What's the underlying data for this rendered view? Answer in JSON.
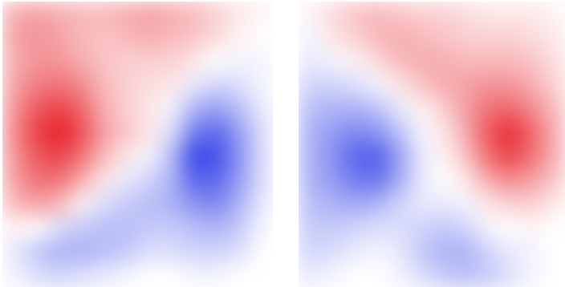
{
  "chart_data": [
    {
      "type": "heatmap",
      "tick_labels": false,
      "zlim": [
        -1,
        1
      ],
      "cells": [
        [
          0.35,
          0.4,
          0.35,
          0.3,
          0.3,
          0.35,
          0.4,
          0.35,
          0.3,
          0.2,
          0.1,
          0.05
        ],
        [
          0.4,
          0.45,
          0.4,
          0.3,
          0.25,
          0.3,
          0.35,
          0.3,
          0.25,
          0.15,
          0.05,
          0.0
        ],
        [
          0.35,
          0.45,
          0.45,
          0.35,
          0.25,
          0.2,
          0.2,
          0.2,
          0.1,
          0.0,
          -0.05,
          -0.05
        ],
        [
          0.4,
          0.55,
          0.6,
          0.5,
          0.3,
          0.2,
          0.15,
          0.1,
          -0.1,
          -0.2,
          -0.15,
          -0.05
        ],
        [
          0.45,
          0.7,
          0.8,
          0.65,
          0.35,
          0.2,
          0.1,
          -0.05,
          -0.35,
          -0.45,
          -0.3,
          -0.1
        ],
        [
          0.5,
          0.8,
          0.95,
          0.75,
          0.4,
          0.25,
          0.1,
          -0.15,
          -0.6,
          -0.7,
          -0.45,
          -0.15
        ],
        [
          0.45,
          0.7,
          0.8,
          0.6,
          0.3,
          0.1,
          -0.05,
          -0.3,
          -0.85,
          -0.8,
          -0.5,
          -0.15
        ],
        [
          0.4,
          0.6,
          0.6,
          0.35,
          0.1,
          -0.1,
          -0.2,
          -0.35,
          -0.7,
          -0.7,
          -0.45,
          -0.15
        ],
        [
          0.3,
          0.4,
          0.3,
          0.05,
          -0.15,
          -0.25,
          -0.3,
          -0.35,
          -0.5,
          -0.55,
          -0.35,
          -0.1
        ],
        [
          0.05,
          0.0,
          -0.15,
          -0.25,
          -0.3,
          -0.3,
          -0.25,
          -0.25,
          -0.3,
          -0.35,
          -0.25,
          -0.05
        ],
        [
          -0.1,
          -0.25,
          -0.35,
          -0.35,
          -0.3,
          -0.25,
          -0.15,
          -0.15,
          -0.2,
          -0.2,
          -0.15,
          0.0
        ],
        [
          -0.05,
          -0.15,
          -0.2,
          -0.15,
          -0.1,
          -0.05,
          0.0,
          0.0,
          -0.05,
          -0.05,
          0.0,
          0.0
        ]
      ]
    },
    {
      "type": "heatmap",
      "tick_labels": false,
      "zlim": [
        -1,
        1
      ],
      "cells": [
        [
          0.05,
          0.15,
          0.25,
          0.3,
          0.25,
          0.2,
          0.2,
          0.15,
          0.1,
          0.1,
          0.1,
          0.05
        ],
        [
          -0.05,
          0.1,
          0.2,
          0.3,
          0.35,
          0.3,
          0.25,
          0.2,
          0.2,
          0.2,
          0.15,
          0.1
        ],
        [
          -0.1,
          -0.05,
          0.05,
          0.15,
          0.3,
          0.35,
          0.35,
          0.3,
          0.3,
          0.3,
          0.25,
          0.15
        ],
        [
          -0.2,
          -0.2,
          -0.15,
          -0.05,
          0.1,
          0.25,
          0.35,
          0.4,
          0.45,
          0.45,
          0.35,
          0.2
        ],
        [
          -0.3,
          -0.35,
          -0.35,
          -0.3,
          -0.1,
          0.05,
          0.2,
          0.4,
          0.6,
          0.65,
          0.5,
          0.3
        ],
        [
          -0.35,
          -0.45,
          -0.55,
          -0.5,
          -0.3,
          -0.05,
          0.1,
          0.35,
          0.7,
          0.9,
          0.65,
          0.35
        ],
        [
          -0.35,
          -0.5,
          -0.7,
          -0.75,
          -0.45,
          -0.1,
          0.05,
          0.25,
          0.6,
          0.8,
          0.6,
          0.35
        ],
        [
          -0.35,
          -0.45,
          -0.6,
          -0.65,
          -0.4,
          -0.1,
          0.0,
          0.1,
          0.35,
          0.5,
          0.4,
          0.25
        ],
        [
          -0.3,
          -0.35,
          -0.4,
          -0.35,
          -0.2,
          -0.1,
          -0.1,
          -0.05,
          0.1,
          0.2,
          0.2,
          0.1
        ],
        [
          -0.25,
          -0.25,
          -0.2,
          -0.15,
          -0.15,
          -0.2,
          -0.25,
          -0.2,
          -0.05,
          0.0,
          0.05,
          0.0
        ],
        [
          -0.2,
          -0.15,
          -0.1,
          -0.05,
          -0.1,
          -0.25,
          -0.35,
          -0.35,
          -0.2,
          -0.1,
          -0.05,
          0.0
        ],
        [
          -0.1,
          -0.05,
          0.0,
          0.0,
          -0.05,
          -0.15,
          -0.25,
          -0.3,
          -0.25,
          -0.15,
          -0.05,
          0.0
        ]
      ]
    }
  ]
}
